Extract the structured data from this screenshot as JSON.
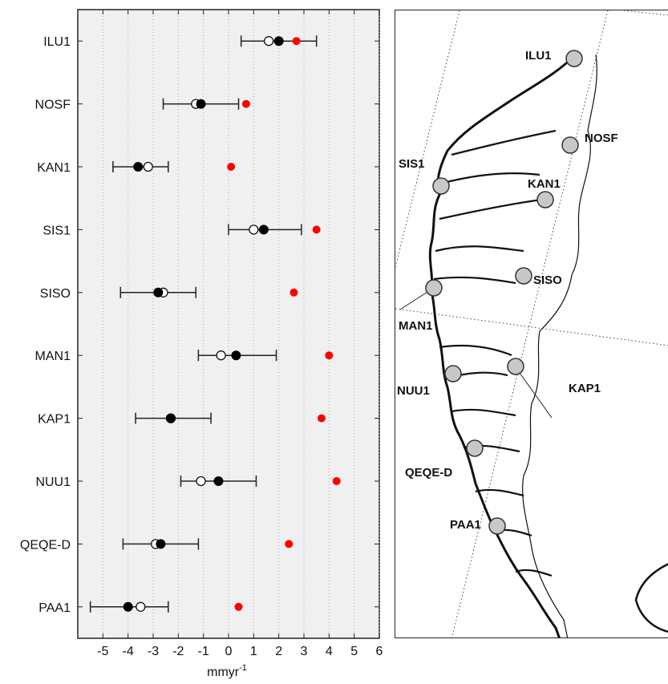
{
  "chart_data": {
    "type": "scatter",
    "orientation": "horizontal-dot-plot-with-error-bars",
    "categories": [
      "ILU1",
      "NOSF",
      "KAN1",
      "SIS1",
      "SISO",
      "MAN1",
      "KAP1",
      "NUU1",
      "QEQE-D",
      "PAA1"
    ],
    "xlabel_base": "mmyr",
    "xlabel_sup": "-1",
    "xlim": [
      -6,
      6
    ],
    "xticks": [
      -5,
      -4,
      -3,
      -2,
      -1,
      0,
      1,
      2,
      3,
      4,
      5,
      6
    ],
    "grid": true,
    "grid_style": "vertical dotted",
    "series": [
      {
        "style": "filled-black",
        "color": "#000000",
        "values": [
          2.0,
          -1.1,
          -3.6,
          1.4,
          -2.8,
          0.3,
          -2.3,
          -0.4,
          -2.7,
          -4.0
        ],
        "error_low": [
          0.5,
          -2.6,
          -4.6,
          0.0,
          -4.3,
          -1.2,
          -3.7,
          -1.9,
          -4.2,
          -5.5
        ],
        "error_high": [
          3.5,
          0.4,
          -2.4,
          2.9,
          -1.3,
          1.9,
          -0.7,
          1.1,
          -1.2,
          -2.4
        ]
      },
      {
        "style": "open-white",
        "color": "#ffffff",
        "values": [
          1.6,
          -1.3,
          -3.2,
          1.0,
          -2.6,
          -0.3,
          -2.3,
          -1.1,
          -2.9,
          -3.5
        ]
      },
      {
        "style": "filled-red",
        "color": "#ff0000",
        "values": [
          2.7,
          0.7,
          0.1,
          3.5,
          2.6,
          4.0,
          3.7,
          4.3,
          2.4,
          0.4
        ]
      }
    ]
  },
  "map": {
    "stations": [
      "ILU1",
      "NOSF",
      "SIS1",
      "KAN1",
      "SISO",
      "MAN1",
      "NUU1",
      "KAP1",
      "QEQE-D",
      "PAA1"
    ],
    "station_color": "#c8c8c8"
  },
  "colors": {
    "plot_background": "#f0f0f0",
    "axis": "#222222",
    "grid": "#aaaaaa"
  }
}
